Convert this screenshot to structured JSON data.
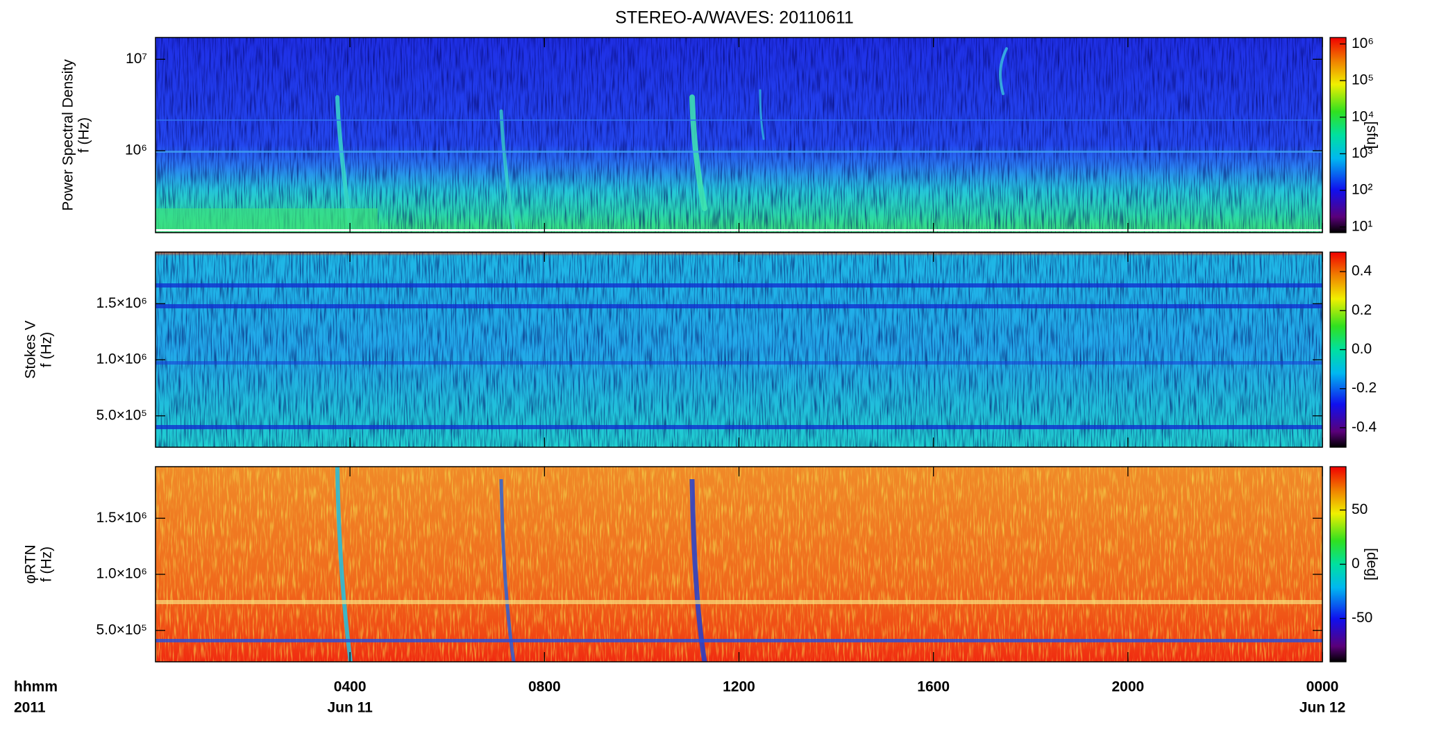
{
  "chart_data": {
    "type": "spectrogram",
    "title": "STEREO-A/WAVES: 20110611",
    "xlim": [
      0,
      24
    ],
    "xticks": [
      {
        "value": 4,
        "label": "0400"
      },
      {
        "value": 8,
        "label": "0800"
      },
      {
        "value": 12,
        "label": "1200"
      },
      {
        "value": 16,
        "label": "1600"
      },
      {
        "value": 20,
        "label": "2000"
      },
      {
        "value": 24,
        "label": "0000"
      }
    ],
    "date_ticks": [
      {
        "value": 4,
        "label": "Jun 11"
      },
      {
        "value": 24,
        "label": "Jun 12"
      }
    ],
    "x_unit_label": "hhmm",
    "year_label": "2011",
    "panels": [
      {
        "ylabel": [
          "Power Spectral Density",
          "f (Hz)"
        ],
        "ylog": true,
        "ylim": [
          127000,
          17300000
        ],
        "yticks": [
          {
            "value": 1000000,
            "label": "10⁶"
          },
          {
            "value": 10000000,
            "label": "10⁷"
          }
        ],
        "colorbar_label": "[sfu]",
        "clog": true,
        "clim": [
          7,
          1500000
        ],
        "cticks": [
          {
            "value": 10,
            "label": "10¹"
          },
          {
            "value": 100,
            "label": "10²"
          },
          {
            "value": 1000,
            "label": "10³"
          },
          {
            "value": 10000,
            "label": "10⁴"
          },
          {
            "value": 100000,
            "label": "10⁵"
          },
          {
            "value": 1000000,
            "label": "10⁶"
          }
        ]
      },
      {
        "ylabel": [
          "Stokes V",
          "f (Hz)"
        ],
        "ylog": false,
        "ylim": [
          220000,
          1960000
        ],
        "yticks": [
          {
            "value": 500000,
            "label": "5.0×10⁵"
          },
          {
            "value": 1000000,
            "label": "1.0×10⁶"
          },
          {
            "value": 1500000,
            "label": "1.5×10⁶"
          }
        ],
        "colorbar_label": null,
        "clog": false,
        "clim": [
          -0.5,
          0.5
        ],
        "cticks": [
          -0.4,
          -0.2,
          {
            "value": 0,
            "label": "0.0"
          },
          0.2,
          0.4
        ]
      },
      {
        "ylabel": [
          "φRTN",
          "f (Hz)"
        ],
        "ylog": false,
        "ylim": [
          220000,
          1960000
        ],
        "yticks": [
          {
            "value": 500000,
            "label": "5.0×10⁵"
          },
          {
            "value": 1000000,
            "label": "1.0×10⁶"
          },
          {
            "value": 1500000,
            "label": "1.5×10⁶"
          }
        ],
        "colorbar_label": "[deg]",
        "clog": false,
        "clim": [
          -90,
          90
        ],
        "cticks": [
          -50,
          0,
          50
        ]
      }
    ]
  }
}
